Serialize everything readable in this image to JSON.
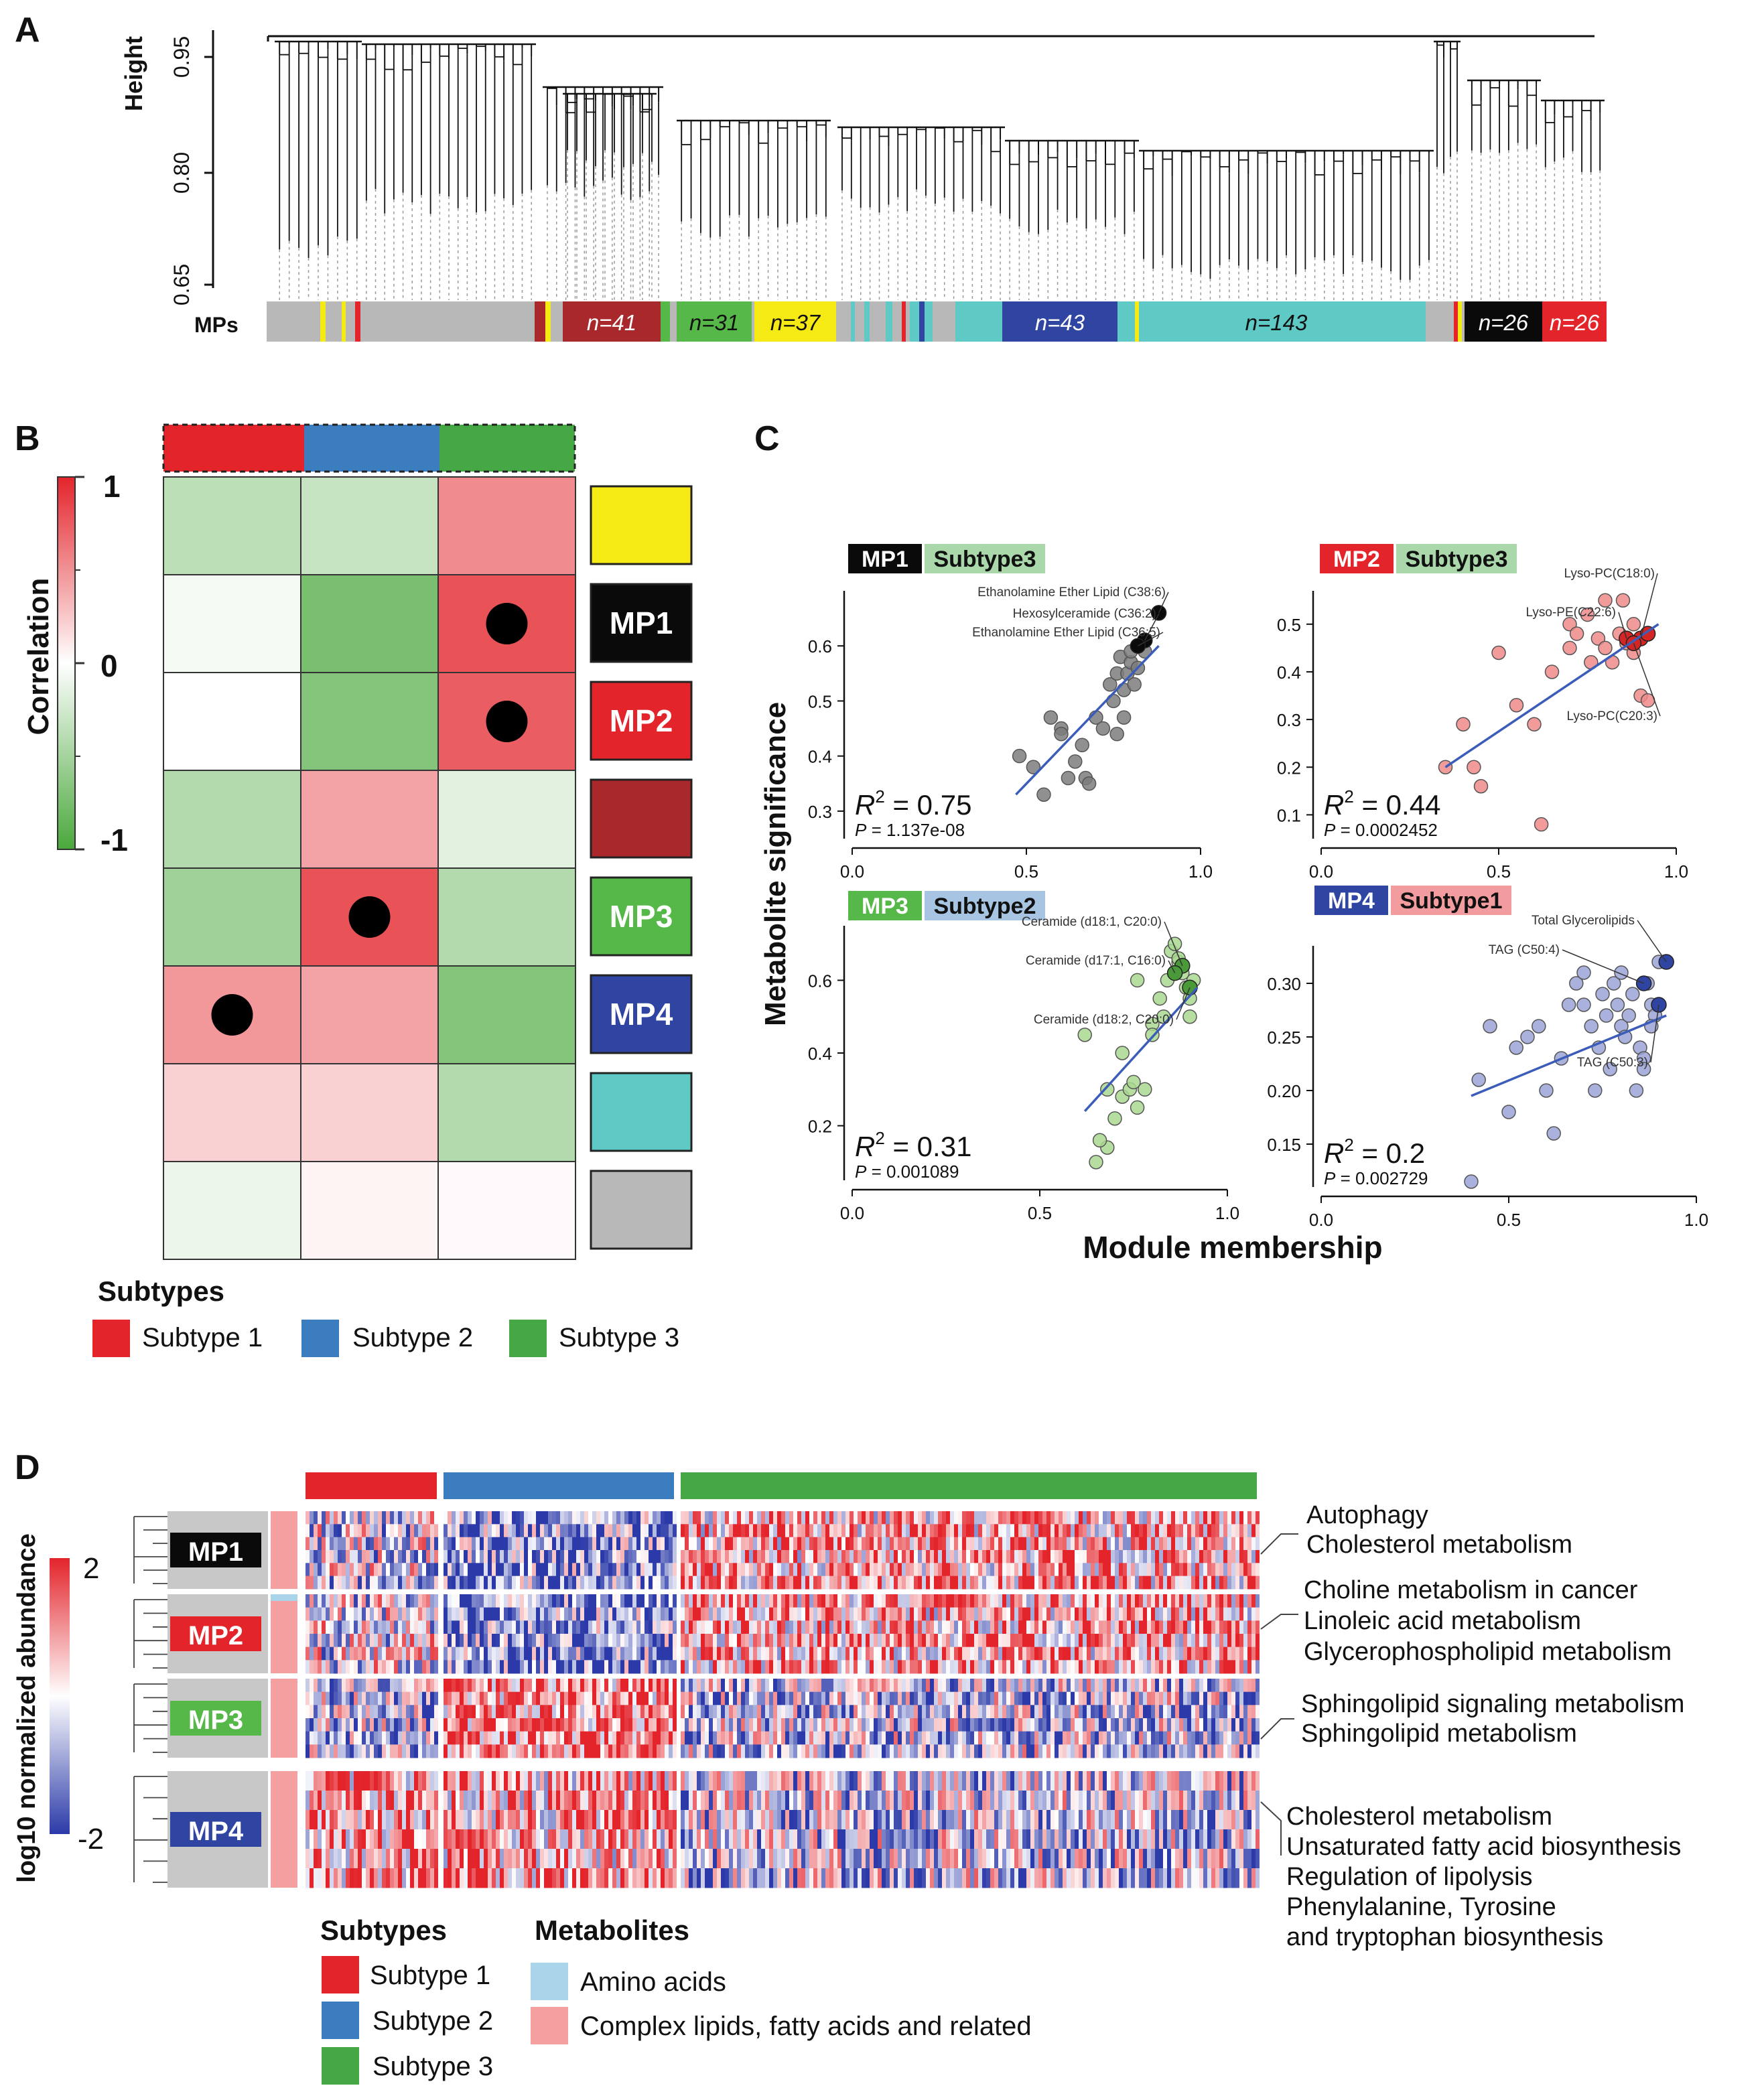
{
  "colors": {
    "subtype1": "#e3242b",
    "subtype2": "#3b7dbf",
    "subtype3": "#45a845",
    "yellow": "#f5ea14",
    "black": "#0a0a0a",
    "red": "#e3242b",
    "darkred": "#a8282b",
    "green": "#55b848",
    "blue": "#2f45a1",
    "turquoise": "#5ec9c5",
    "grey": "#b8b8b8",
    "aminoAcids": "#a9d4ea",
    "lipids": "#f4a0a0"
  },
  "panelA": {
    "label": "A",
    "ylabel": "Height",
    "yticks": [
      "0.95",
      "0.80",
      "0.65"
    ],
    "modulesLabel": "MPs",
    "moduleCounts": [
      {
        "text": "n=41",
        "color": "darkred"
      },
      {
        "text": "n=31",
        "color": "green"
      },
      {
        "text": "n=37",
        "color": "yellow"
      },
      {
        "text": "n=43",
        "color": "blue"
      },
      {
        "text": "n=143",
        "color": "turquoise"
      },
      {
        "text": "n=26",
        "color": "black"
      },
      {
        "text": "n=26",
        "color": "red"
      }
    ]
  },
  "panelB": {
    "label": "B",
    "colorbarTitle": "Correlation",
    "colorbarTicks": [
      "1",
      "0",
      "-1"
    ],
    "columns": [
      "Subtype 1",
      "Subtype 2",
      "Subtype 3"
    ],
    "rows": [
      {
        "module": "",
        "color": "yellow",
        "values": [
          -0.35,
          -0.3,
          0.5
        ],
        "significant": [
          false,
          false,
          false
        ]
      },
      {
        "module": "MP1",
        "color": "black",
        "values": [
          -0.05,
          -0.7,
          0.75
        ],
        "significant": [
          false,
          false,
          true
        ]
      },
      {
        "module": "MP2",
        "color": "red",
        "values": [
          0.0,
          -0.65,
          0.7
        ],
        "significant": [
          false,
          false,
          true
        ]
      },
      {
        "module": "",
        "color": "darkred",
        "values": [
          -0.4,
          0.4,
          -0.15
        ],
        "significant": [
          false,
          false,
          false
        ]
      },
      {
        "module": "MP3",
        "color": "green",
        "values": [
          -0.5,
          0.75,
          -0.4
        ],
        "significant": [
          false,
          true,
          false
        ]
      },
      {
        "module": "MP4",
        "color": "blue",
        "values": [
          0.45,
          0.4,
          -0.65
        ],
        "significant": [
          true,
          false,
          false
        ]
      },
      {
        "module": "",
        "color": "turquoise",
        "values": [
          0.2,
          0.2,
          -0.4
        ],
        "significant": [
          false,
          false,
          false
        ]
      },
      {
        "module": "",
        "color": "grey",
        "values": [
          -0.1,
          0.05,
          0.02
        ],
        "significant": [
          false,
          false,
          false
        ]
      }
    ],
    "legendTitle": "Subtypes",
    "legend": [
      "Subtype 1",
      "Subtype 2",
      "Subtype 3"
    ]
  },
  "chart_data": [
    {
      "type": "scatter",
      "panel": "C",
      "module": "MP1",
      "subtype": "Subtype3",
      "moduleColor": "black",
      "subtypeColor": "subtype3",
      "xlabel": "Module membership",
      "ylabel": "Metabolite significance",
      "xlim": [
        0,
        1
      ],
      "ylim": [
        0.25,
        0.7
      ],
      "xticks": [
        "0.0",
        "0.5",
        "1.0"
      ],
      "yticks": [
        0.3,
        0.4,
        0.5,
        0.6
      ],
      "yfmt": 1,
      "r2": "0.75",
      "p": "1.137e-08",
      "point_color": "#7d7d7d",
      "x": [
        0.48,
        0.52,
        0.55,
        0.57,
        0.6,
        0.62,
        0.64,
        0.66,
        0.67,
        0.68,
        0.6,
        0.7,
        0.72,
        0.74,
        0.75,
        0.76,
        0.77,
        0.78,
        0.79,
        0.8,
        0.8,
        0.81,
        0.82,
        0.78,
        0.76,
        0.84
      ],
      "y": [
        0.4,
        0.38,
        0.33,
        0.47,
        0.45,
        0.36,
        0.39,
        0.42,
        0.36,
        0.35,
        0.44,
        0.47,
        0.45,
        0.53,
        0.5,
        0.55,
        0.58,
        0.52,
        0.55,
        0.57,
        0.59,
        0.53,
        0.56,
        0.47,
        0.44,
        0.59
      ],
      "highlight_x": [
        0.88,
        0.84,
        0.82
      ],
      "highlight_y": [
        0.66,
        0.61,
        0.6
      ],
      "highlight_color": "#0a0a0a",
      "labels": [
        "Ethanolamine Ether Lipid (C38:6)",
        "Hexosylceramide (C36:2)",
        "Ethanolamine Ether Lipid (C36:5)"
      ],
      "fit": {
        "x": [
          0.47,
          0.88
        ],
        "y": [
          0.33,
          0.6
        ]
      }
    },
    {
      "type": "scatter",
      "panel": "C",
      "module": "MP2",
      "subtype": "Subtype3",
      "moduleColor": "red",
      "subtypeColor": "subtype3",
      "xlabel": "Module membership",
      "ylabel": "Metabolite significance",
      "xlim": [
        0,
        1
      ],
      "ylim": [
        0.05,
        0.57
      ],
      "xticks": [
        "0.0",
        "0.5",
        "1.0"
      ],
      "yticks": [
        0.1,
        0.2,
        0.3,
        0.4,
        0.5
      ],
      "yfmt": 1,
      "r2": "0.44",
      "p": "0.0002452",
      "point_color": "#f08a8a",
      "x": [
        0.35,
        0.4,
        0.5,
        0.55,
        0.6,
        0.62,
        0.65,
        0.7,
        0.72,
        0.75,
        0.78,
        0.8,
        0.82,
        0.84,
        0.86,
        0.88,
        0.9,
        0.92,
        0.45,
        0.43,
        0.8,
        0.85,
        0.88,
        0.9,
        0.76,
        0.7
      ],
      "y": [
        0.2,
        0.29,
        0.44,
        0.33,
        0.29,
        0.08,
        0.4,
        0.5,
        0.48,
        0.52,
        0.47,
        0.45,
        0.42,
        0.48,
        0.46,
        0.44,
        0.35,
        0.34,
        0.16,
        0.2,
        0.55,
        0.55,
        0.5,
        0.47,
        0.42,
        0.45
      ],
      "highlight_x": [
        0.9,
        0.86,
        0.88,
        0.92
      ],
      "highlight_y": [
        0.47,
        0.47,
        0.46,
        0.48
      ],
      "highlight_color": "#d42525",
      "labels": [
        "Lyso-PC(C18:0)",
        "Lyso-PE(C22:6)",
        "Lyso-PC(C20:3)"
      ],
      "fit": {
        "x": [
          0.35,
          0.95
        ],
        "y": [
          0.2,
          0.5
        ]
      }
    },
    {
      "type": "scatter",
      "panel": "C",
      "module": "MP3",
      "subtype": "Subtype2",
      "moduleColor": "green",
      "subtypeColor": "subtype2",
      "xlabel": "Module membership",
      "ylabel": "Metabolite significance",
      "xlim": [
        0,
        1
      ],
      "ylim": [
        0.05,
        0.75
      ],
      "xticks": [
        "0.0",
        "0.5",
        "1.0"
      ],
      "yticks": [
        0.2,
        0.4,
        0.6
      ],
      "yfmt": 1,
      "r2": "0.31",
      "p": "0.001089",
      "point_color": "#a8d88f",
      "x": [
        0.62,
        0.65,
        0.68,
        0.7,
        0.72,
        0.74,
        0.75,
        0.76,
        0.78,
        0.8,
        0.82,
        0.84,
        0.85,
        0.86,
        0.87,
        0.88,
        0.89,
        0.9,
        0.9,
        0.91,
        0.66,
        0.72,
        0.8,
        0.83,
        0.87,
        0.76,
        0.68
      ],
      "y": [
        0.45,
        0.1,
        0.14,
        0.22,
        0.28,
        0.3,
        0.32,
        0.25,
        0.3,
        0.48,
        0.55,
        0.6,
        0.68,
        0.7,
        0.65,
        0.62,
        0.58,
        0.55,
        0.5,
        0.6,
        0.16,
        0.4,
        0.45,
        0.5,
        0.66,
        0.6,
        0.3
      ],
      "highlight_x": [
        0.88,
        0.86,
        0.9
      ],
      "highlight_y": [
        0.64,
        0.62,
        0.58
      ],
      "highlight_color": "#4a9a3a",
      "labels": [
        "Ceramide (d18:1, C20:0)",
        "Ceramide (d17:1, C16:0)",
        "Ceramide (d18:2, C20:0)"
      ],
      "fit": {
        "x": [
          0.62,
          0.92
        ],
        "y": [
          0.24,
          0.58
        ]
      }
    },
    {
      "type": "scatter",
      "panel": "C",
      "module": "MP4",
      "subtype": "Subtype1",
      "moduleColor": "blue",
      "subtypeColor": "subtype1",
      "xlabel": "Module membership",
      "ylabel": "Metabolite significance",
      "xlim": [
        0,
        1
      ],
      "ylim": [
        0.11,
        0.335
      ],
      "xticks": [
        "0.0",
        "0.5",
        "1.0"
      ],
      "yticks": [
        0.15,
        0.2,
        0.25,
        0.3
      ],
      "yfmt": 2,
      "r2": "0.2",
      "p": "0.002729",
      "point_color": "#9aa3d6",
      "x": [
        0.4,
        0.45,
        0.5,
        0.55,
        0.6,
        0.62,
        0.64,
        0.66,
        0.68,
        0.7,
        0.72,
        0.74,
        0.75,
        0.76,
        0.77,
        0.78,
        0.79,
        0.8,
        0.81,
        0.82,
        0.83,
        0.84,
        0.85,
        0.86,
        0.87,
        0.88,
        0.89,
        0.9,
        0.42,
        0.52,
        0.58,
        0.7,
        0.73,
        0.86,
        0.8,
        0.88
      ],
      "y": [
        0.115,
        0.26,
        0.18,
        0.25,
        0.2,
        0.16,
        0.23,
        0.28,
        0.3,
        0.31,
        0.26,
        0.24,
        0.29,
        0.27,
        0.22,
        0.3,
        0.28,
        0.26,
        0.25,
        0.27,
        0.29,
        0.2,
        0.24,
        0.23,
        0.3,
        0.28,
        0.27,
        0.32,
        0.21,
        0.24,
        0.26,
        0.28,
        0.2,
        0.22,
        0.31,
        0.26
      ],
      "highlight_x": [
        0.92,
        0.86,
        0.9
      ],
      "highlight_y": [
        0.32,
        0.3,
        0.28
      ],
      "highlight_color": "#2f45a1",
      "labels": [
        "Total Glycerolipids",
        "TAG (C50:4)",
        "TAG (C50:3)"
      ],
      "fit": {
        "x": [
          0.4,
          0.92
        ],
        "y": [
          0.195,
          0.27
        ]
      }
    }
  ],
  "panelC": {
    "label": "C",
    "xlabel": "Module membership",
    "ylabel": "Metabolite significance"
  },
  "panelD": {
    "label": "D",
    "colorbarTitle": "log10 normalized abundance",
    "colorbarTicks": [
      "2",
      "-2"
    ],
    "modules": [
      {
        "name": "MP1",
        "color": "black",
        "pathways": [
          "Autophagy",
          "Cholesterol metabolism"
        ],
        "bias": [
          -0.1,
          -0.55,
          0.35
        ]
      },
      {
        "name": "MP2",
        "color": "red",
        "pathways": [
          "Choline metabolism in cancer",
          "Linoleic acid metabolism",
          "Glycerophospholipid metabolism"
        ],
        "bias": [
          -0.05,
          -0.55,
          0.35
        ]
      },
      {
        "name": "MP3",
        "color": "green",
        "pathways": [
          "Sphingolipid signaling metabolism",
          "Sphingolipid metabolism"
        ],
        "bias": [
          -0.3,
          0.55,
          -0.25
        ]
      },
      {
        "name": "MP4",
        "color": "blue",
        "pathways": [
          "Cholesterol metabolism",
          "Unsaturated fatty acid biosynthesis",
          "Regulation of lipolysis",
          "Phenylalanine, Tyrosine",
          "and tryptophan biosynthesis"
        ],
        "bias": [
          0.45,
          0.35,
          -0.2
        ]
      }
    ],
    "legendSubtypesTitle": "Subtypes",
    "legendSubtypes": [
      "Subtype 1",
      "Subtype 2",
      "Subtype 3"
    ],
    "legendMetabolitesTitle": "Metabolites",
    "legendMetabolites": [
      "Amino acids",
      "Complex lipids, fatty acids and related"
    ]
  }
}
